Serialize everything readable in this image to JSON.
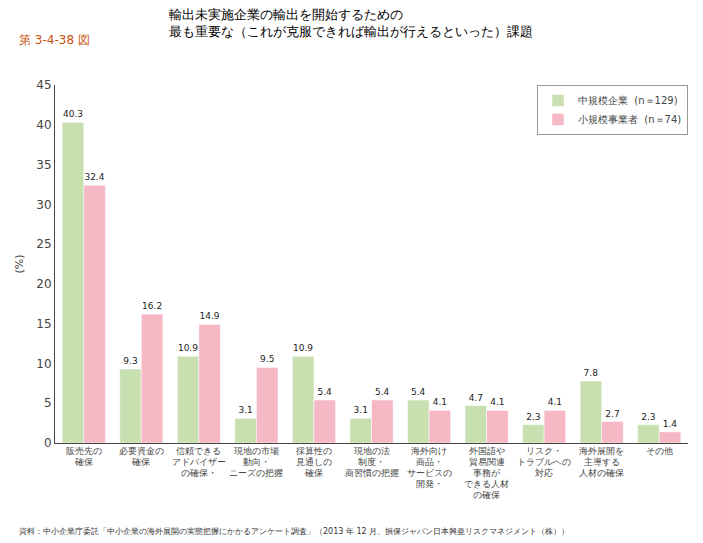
{
  "chart_data": {
    "type": "bar",
    "title": "輸出未実施企業の輸出を開始するための\n最も重要な（これが克服できれば輸出が行えるといった）課題",
    "ylabel": "(%)",
    "categories": [
      "販売先の\n確保",
      "必要資金の\n確保",
      "信頼できる\nアドバイザー\nの確保・",
      "現地の市場\n動向・\nニーズの把握",
      "採算性の\n見通しの\n確保",
      "現地の法\n制度・\n商習慣の把握",
      "海外向け\n商品・\nサービスの\n開発・",
      "外国語や\n貿易関連\n事務が\nできる人材\nの確保",
      "リスク・\nトラブルへの\n対応",
      "海外展開を\n主導する\n人材の確保",
      "その他"
    ],
    "series": [
      {
        "name": "中規模企業  (n＝129)",
        "color": "#c8e0b0",
        "values": [
          40.3,
          9.3,
          10.9,
          3.1,
          10.9,
          3.1,
          5.4,
          4.7,
          2.3,
          7.8,
          2.3
        ]
      },
      {
        "name": "小規模事業者  (n＝74)",
        "color": "#f5b8c4",
        "values": [
          32.4,
          16.2,
          14.9,
          9.5,
          5.4,
          5.4,
          4.1,
          4.1,
          4.1,
          2.7,
          1.4
        ]
      }
    ],
    "ylim": [
      0,
      45
    ],
    "yticks": [
      0,
      5,
      10,
      15,
      20,
      25,
      30,
      35,
      40,
      45
    ],
    "grid": false,
    "legend": "upper right",
    "data_labels": true,
    "annotations": [
      "第 3-4-38 図",
      "資料：中小企業庁委託「中小企業の海外展開の実態把握にかかるアンケート調査」（2013 年 12 月、損保ジャパン日本興亜リスクマネジメント（株））"
    ]
  }
}
